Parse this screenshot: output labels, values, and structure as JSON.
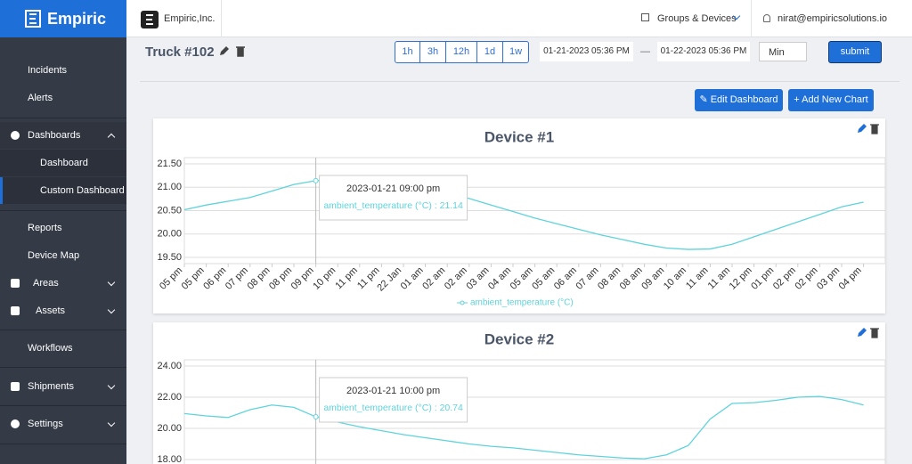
{
  "sidebar": {
    "brand": "Empiric",
    "menu": [
      "Incidents",
      "Alerts",
      "Dashboards",
      "Dashboard",
      "Custom Dashboard",
      "Reports",
      "Device Map",
      "Areas",
      "Assets",
      "Workflows",
      "Shipments",
      "Settings"
    ]
  },
  "topbar": {
    "org": "Empiric,Inc.",
    "groups": "Groups & Devices",
    "user": "nirat@empiricsolutions.io"
  },
  "toolbar": {
    "title": "Truck #102",
    "ranges": [
      "1h",
      "3h",
      "12h",
      "1d",
      "1w"
    ],
    "from": "01-21-2023 05:36 PM",
    "separator": "—",
    "to": "01-22-2023 05:36 PM",
    "aggregation": "Min",
    "submit": "submit"
  },
  "actions": {
    "edit": "Edit Dashboard",
    "add": "Add New Chart"
  },
  "chart_data": [
    {
      "type": "line",
      "title": "Device #1",
      "categories": [
        "05 pm",
        "05 pm",
        "06 pm",
        "07 pm",
        "08 pm",
        "08 pm",
        "09 pm",
        "10 pm",
        "11 pm",
        "11 pm",
        "22 Jan",
        "01 am",
        "02 am",
        "02 am",
        "03 am",
        "04 am",
        "05 am",
        "05 am",
        "06 am",
        "07 am",
        "08 am",
        "08 am",
        "09 am",
        "10 am",
        "11 am",
        "11 am",
        "12 pm",
        "01 pm",
        "02 pm",
        "02 pm",
        "03 pm",
        "04 pm"
      ],
      "series": [
        {
          "name": "ambient_temperature (°C)",
          "color": "#5fd3dc",
          "values": [
            20.52,
            20.62,
            20.7,
            20.78,
            20.92,
            21.06,
            21.14,
            21.16,
            21.16,
            21.15,
            21.12,
            21.05,
            20.9,
            20.76,
            20.62,
            20.48,
            20.34,
            20.22,
            20.1,
            19.98,
            19.88,
            19.78,
            19.7,
            19.67,
            19.68,
            19.78,
            19.94,
            20.1,
            20.26,
            20.42,
            20.58,
            20.68
          ]
        }
      ],
      "ylim": [
        19.5,
        21.5
      ],
      "yticks": [
        {
          "value": 19.5,
          "label": "19.50"
        },
        {
          "value": 20,
          "label": "20.00"
        },
        {
          "value": 20.5,
          "label": "20.50"
        },
        {
          "value": 21,
          "label": "21.00"
        },
        {
          "value": 21.5,
          "label": "21.50"
        }
      ],
      "grid": true,
      "legend": "bottom",
      "tooltip": {
        "title": "2023-01-21 09:00 pm",
        "label": "ambient_temperature (°C) : 21.14",
        "value": 21.14
      }
    },
    {
      "type": "line",
      "title": "Device #2",
      "categories": [
        null,
        null,
        null,
        null,
        null,
        null,
        null,
        null,
        null,
        null,
        null,
        null,
        null,
        null,
        null,
        null,
        null,
        null,
        null,
        null,
        null,
        null,
        null,
        null,
        null,
        null,
        null,
        null,
        null,
        null,
        null,
        null
      ],
      "series": [
        {
          "name": "ambient_temperature (°C)",
          "color": "#5fd3dc",
          "values": [
            20.95,
            20.8,
            20.7,
            21.2,
            21.5,
            21.35,
            20.74,
            20.4,
            20.1,
            19.85,
            19.6,
            19.4,
            19.2,
            19.0,
            18.85,
            18.75,
            18.6,
            18.45,
            18.3,
            18.2,
            18.1,
            18.05,
            18.3,
            18.9,
            20.6,
            21.6,
            21.65,
            21.8,
            22.0,
            22.05,
            21.85,
            21.5
          ]
        }
      ],
      "ylim": [
        18,
        24
      ],
      "yticks": [
        {
          "value": 18,
          "label": "18.00"
        },
        {
          "value": 20,
          "label": "20.00"
        },
        {
          "value": 22,
          "label": "22.00"
        },
        {
          "value": 24,
          "label": "24.00"
        }
      ],
      "grid": true,
      "tooltip": {
        "title": "2023-01-21 10:00 pm",
        "label": "ambient_temperature (°C) : 20.74",
        "value": 20.74
      }
    }
  ]
}
